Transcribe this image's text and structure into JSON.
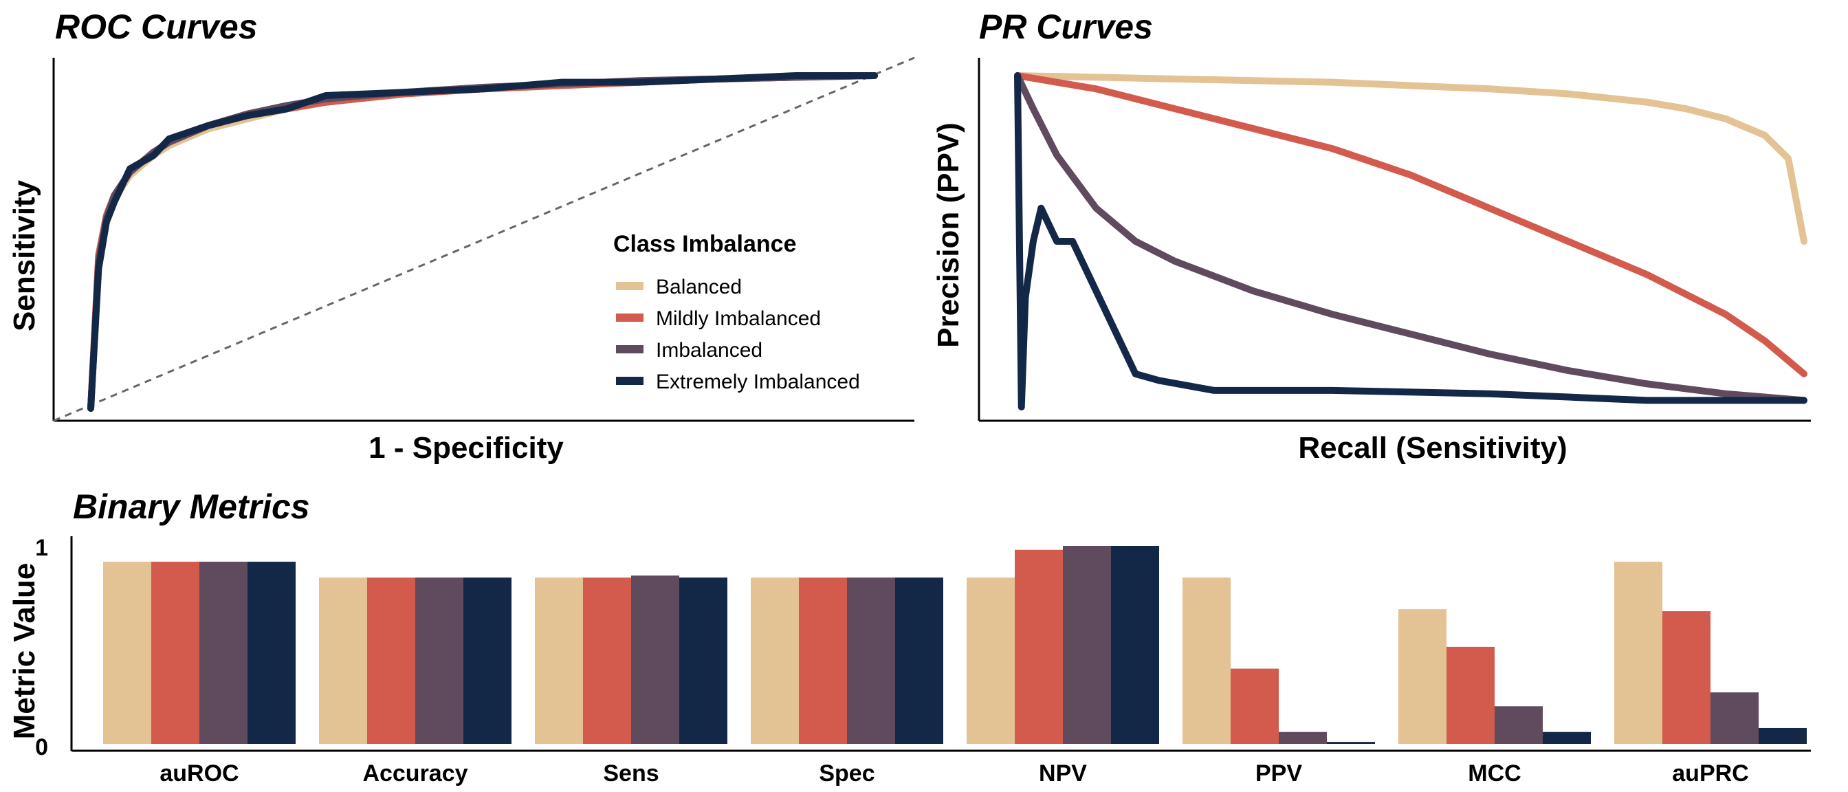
{
  "colors": {
    "Balanced": "#E3C294",
    "Mildly Imbalanced": "#D25B4D",
    "Imbalanced": "#604A5E",
    "Extremely Imbalanced": "#132747"
  },
  "chart_data": [
    {
      "type": "line",
      "title": "ROC Curves",
      "xlabel": "1 - Specificity",
      "ylabel": "Sensitivity",
      "xlim": [
        0,
        1
      ],
      "ylim": [
        0,
        1
      ],
      "diagonal_reference": true,
      "legend": {
        "title": "Class Imbalance",
        "position": "bottom-right",
        "entries": [
          "Balanced",
          "Mildly Imbalanced",
          "Imbalanced",
          "Extremely Imbalanced"
        ]
      },
      "x": [
        0,
        0.01,
        0.02,
        0.03,
        0.05,
        0.08,
        0.1,
        0.15,
        0.2,
        0.25,
        0.3,
        0.4,
        0.5,
        0.6,
        0.7,
        0.8,
        0.9,
        1.0
      ],
      "series": [
        {
          "name": "Balanced",
          "values": [
            0.0,
            0.45,
            0.57,
            0.63,
            0.7,
            0.76,
            0.79,
            0.84,
            0.87,
            0.9,
            0.92,
            0.945,
            0.96,
            0.97,
            0.98,
            0.99,
            0.995,
            1.0
          ]
        },
        {
          "name": "Mildly Imbalanced",
          "values": [
            0.0,
            0.46,
            0.58,
            0.64,
            0.71,
            0.77,
            0.8,
            0.85,
            0.88,
            0.9,
            0.92,
            0.945,
            0.96,
            0.97,
            0.98,
            0.99,
            0.995,
            1.0
          ]
        },
        {
          "name": "Imbalanced",
          "values": [
            0.0,
            0.44,
            0.57,
            0.64,
            0.71,
            0.77,
            0.8,
            0.85,
            0.885,
            0.91,
            0.93,
            0.95,
            0.965,
            0.975,
            0.985,
            0.99,
            0.995,
            1.0
          ]
        },
        {
          "name": "Extremely Imbalanced",
          "values": [
            0.0,
            0.42,
            0.56,
            0.62,
            0.72,
            0.76,
            0.81,
            0.85,
            0.88,
            0.9,
            0.94,
            0.95,
            0.96,
            0.98,
            0.98,
            0.99,
            1.0,
            1.0
          ]
        }
      ]
    },
    {
      "type": "line",
      "title": "PR Curves",
      "xlabel": "Recall (Sensitivity)",
      "ylabel": "Precision (PPV)",
      "xlim": [
        0,
        1
      ],
      "ylim": [
        0,
        1
      ],
      "series": [
        {
          "name": "Balanced",
          "x": [
            0,
            0.1,
            0.2,
            0.3,
            0.4,
            0.5,
            0.6,
            0.7,
            0.8,
            0.85,
            0.9,
            0.95,
            0.98,
            1.0
          ],
          "values": [
            1.0,
            0.995,
            0.99,
            0.985,
            0.98,
            0.97,
            0.96,
            0.945,
            0.92,
            0.9,
            0.87,
            0.82,
            0.75,
            0.5
          ]
        },
        {
          "name": "Mildly Imbalanced",
          "x": [
            0,
            0.05,
            0.1,
            0.2,
            0.3,
            0.4,
            0.5,
            0.6,
            0.7,
            0.8,
            0.9,
            0.95,
            1.0
          ],
          "values": [
            1.0,
            0.98,
            0.96,
            0.9,
            0.84,
            0.78,
            0.7,
            0.6,
            0.5,
            0.4,
            0.28,
            0.2,
            0.1
          ]
        },
        {
          "name": "Imbalanced",
          "x": [
            0,
            0.02,
            0.05,
            0.1,
            0.15,
            0.2,
            0.3,
            0.4,
            0.5,
            0.6,
            0.7,
            0.8,
            0.9,
            1.0
          ],
          "values": [
            1.0,
            0.9,
            0.76,
            0.6,
            0.5,
            0.44,
            0.35,
            0.28,
            0.22,
            0.16,
            0.11,
            0.07,
            0.04,
            0.02
          ]
        },
        {
          "name": "Extremely Imbalanced",
          "x": [
            0,
            0.005,
            0.01,
            0.02,
            0.03,
            0.05,
            0.07,
            0.09,
            0.11,
            0.13,
            0.15,
            0.18,
            0.25,
            0.4,
            0.6,
            0.8,
            1.0
          ],
          "values": [
            1.0,
            0.0,
            0.33,
            0.5,
            0.6,
            0.5,
            0.5,
            0.4,
            0.3,
            0.2,
            0.1,
            0.08,
            0.05,
            0.05,
            0.04,
            0.02,
            0.02
          ]
        }
      ]
    },
    {
      "type": "bar",
      "title": "Binary Metrics",
      "xlabel": "",
      "ylabel": "Metric Value",
      "ylim": [
        0,
        1
      ],
      "yticks": [
        "0",
        "1"
      ],
      "categories": [
        "auROC",
        "Accuracy",
        "Sens",
        "Spec",
        "NPV",
        "PPV",
        "MCC",
        "auPRC"
      ],
      "series": [
        {
          "name": "Balanced",
          "values": [
            0.92,
            0.84,
            0.84,
            0.84,
            0.84,
            0.84,
            0.68,
            0.92
          ]
        },
        {
          "name": "Mildly Imbalanced",
          "values": [
            0.92,
            0.84,
            0.84,
            0.84,
            0.98,
            0.38,
            0.49,
            0.67
          ]
        },
        {
          "name": "Imbalanced",
          "values": [
            0.92,
            0.84,
            0.85,
            0.84,
            1.0,
            0.06,
            0.19,
            0.26
          ]
        },
        {
          "name": "Extremely Imbalanced",
          "values": [
            0.92,
            0.84,
            0.84,
            0.84,
            1.0,
            0.01,
            0.06,
            0.08
          ]
        }
      ]
    }
  ]
}
